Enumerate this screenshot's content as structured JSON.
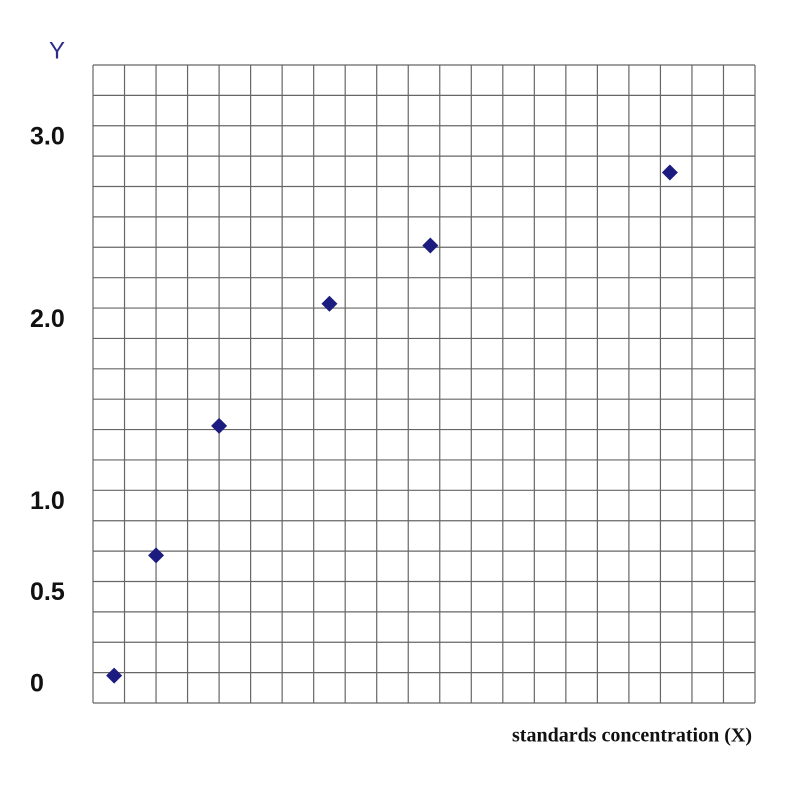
{
  "chart_data": {
    "type": "scatter",
    "y_label": "Y",
    "x_label": "standards concentration (X)",
    "x": [
      0.67,
      2,
      4,
      7.5,
      10.7,
      18.3
    ],
    "values": [
      0.05,
      0.71,
      1.42,
      2.09,
      2.41,
      2.81
    ],
    "color": "#1c1c80",
    "xlim": [
      0,
      21
    ],
    "ylim": [
      -0.1,
      3.4
    ],
    "yticks": [
      {
        "value": 3,
        "label": "3.0"
      },
      {
        "value": 2,
        "label": "2.0"
      },
      {
        "value": 1,
        "label": "1.0"
      },
      0.5,
      0
    ],
    "grid": true
  }
}
